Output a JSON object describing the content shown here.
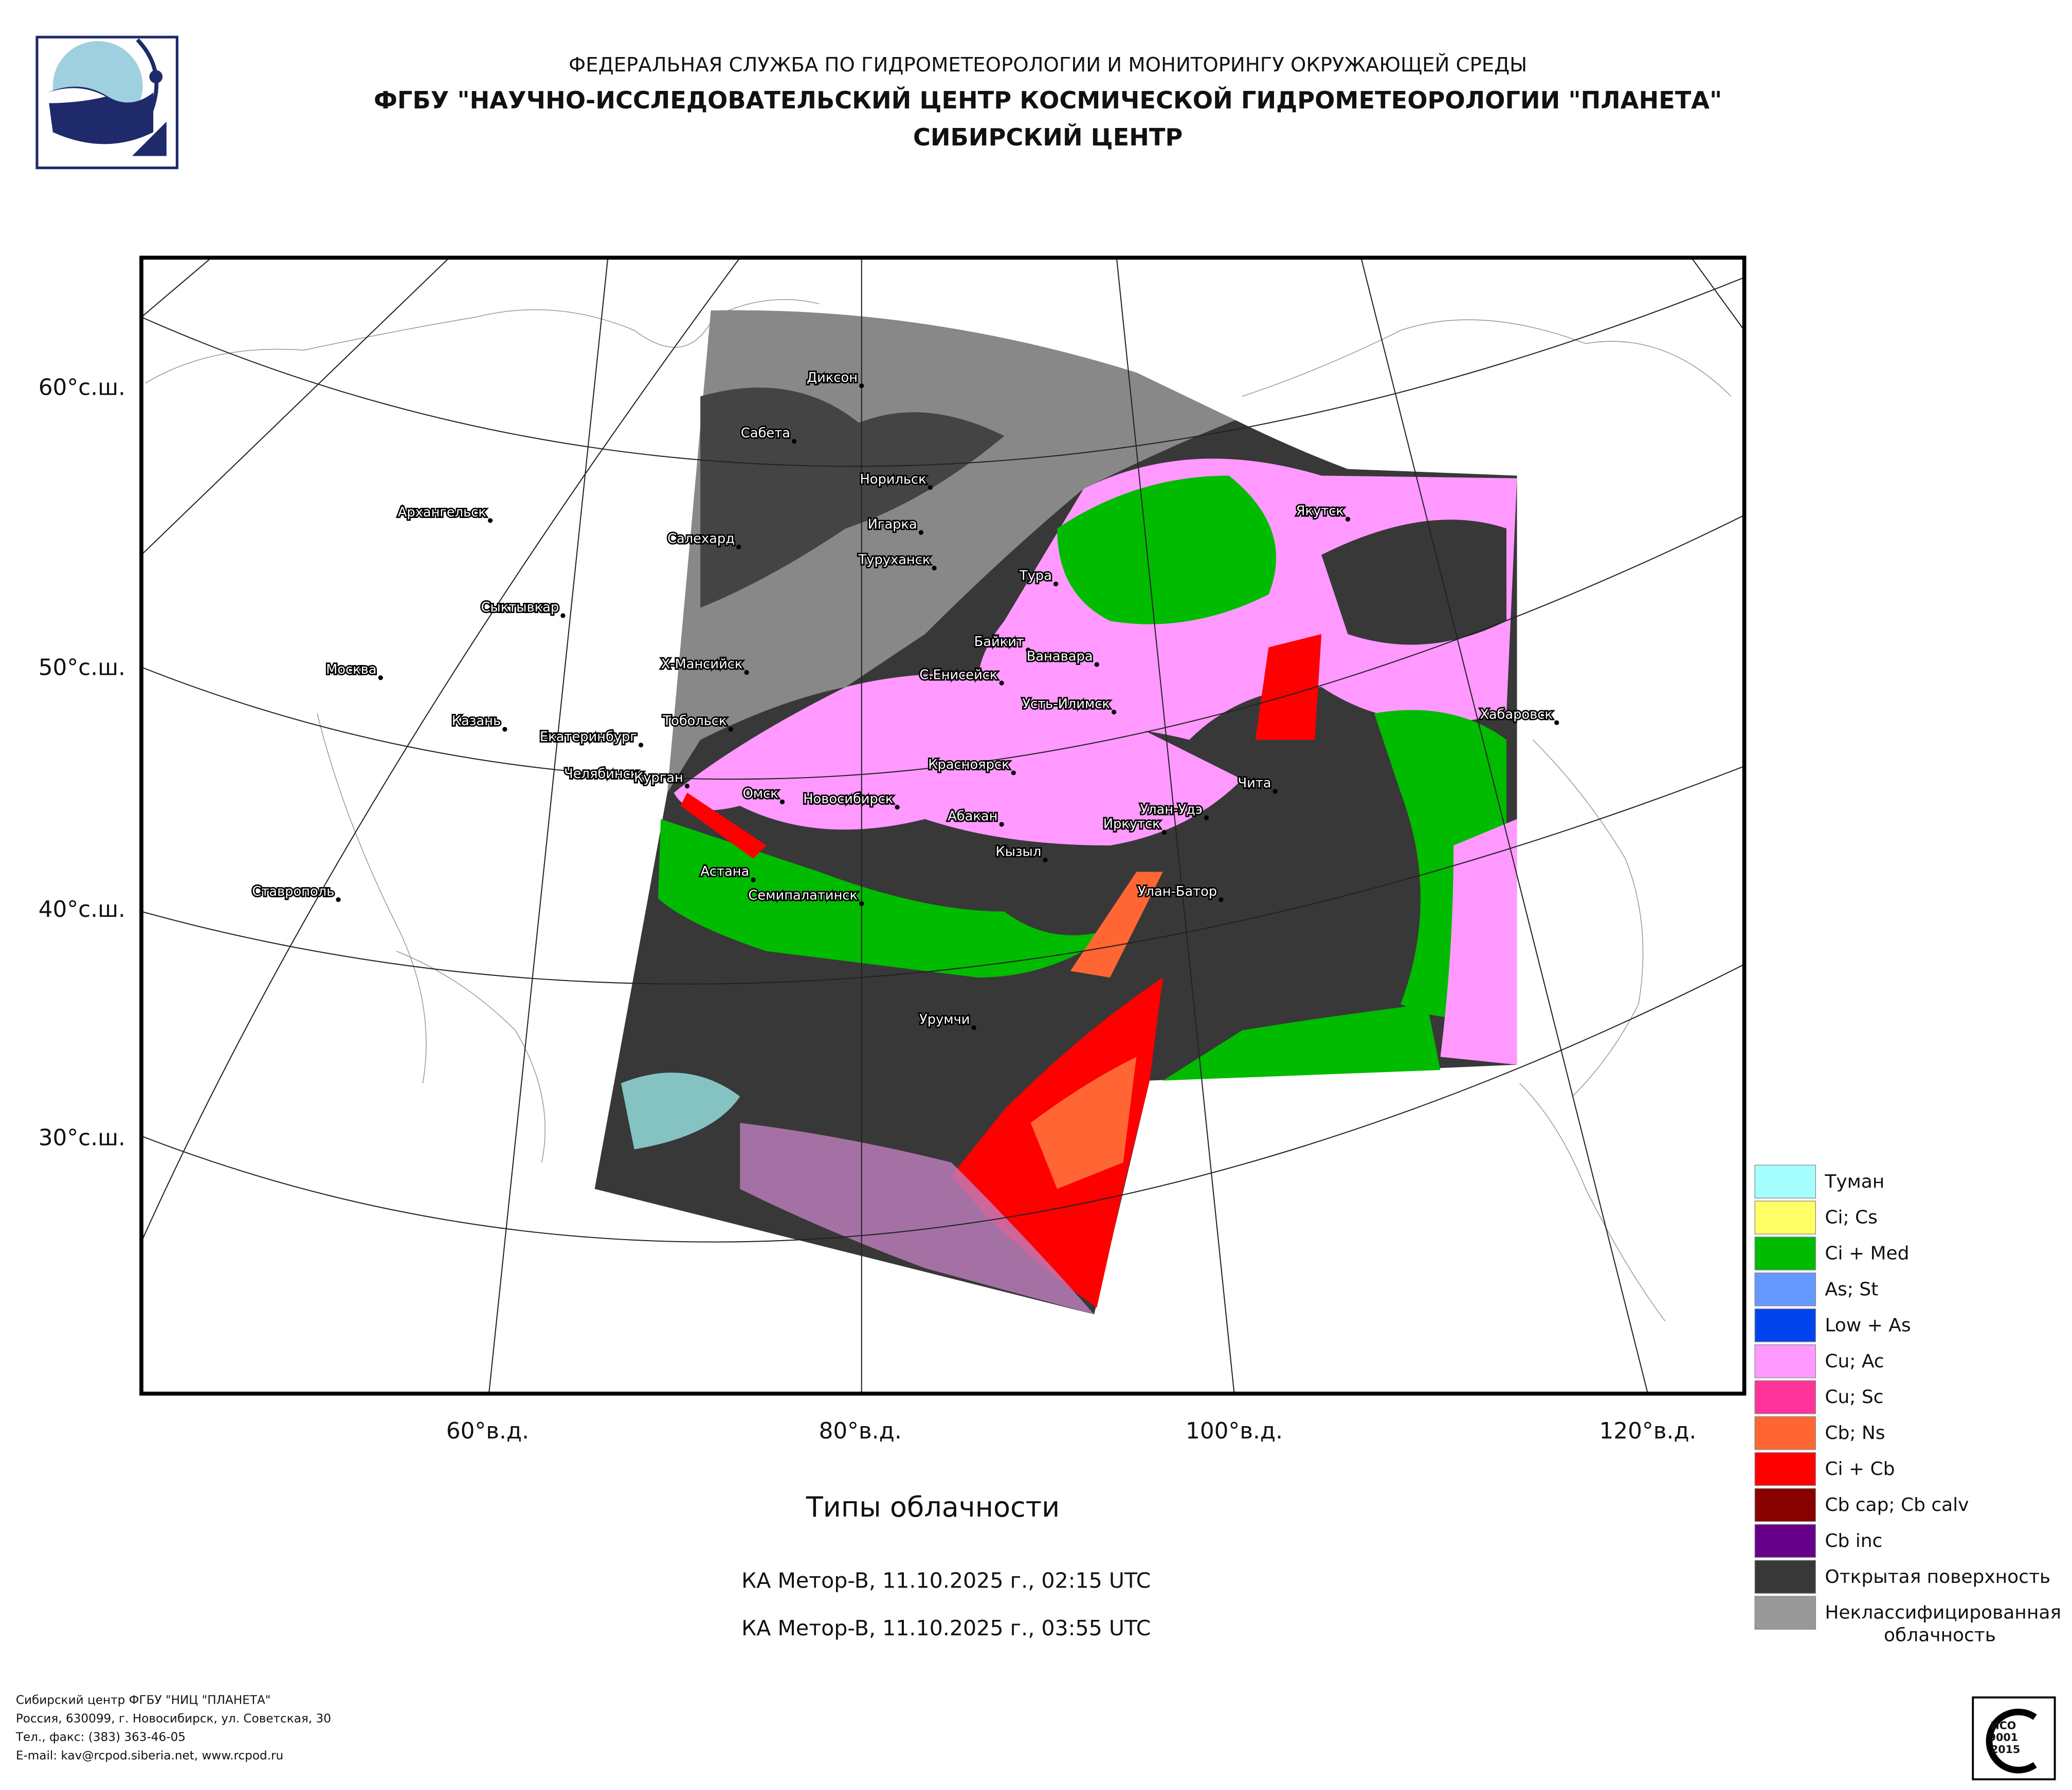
{
  "header": {
    "line1": "ФЕДЕРАЛЬНАЯ СЛУЖБА ПО ГИДРОМЕТЕОРОЛОГИИ И МОНИТОРИНГУ ОКРУЖАЮЩЕЙ СРЕДЫ",
    "line2": "ФГБУ \"НАУЧНО-ИССЛЕДОВАТЕЛЬСКИЙ ЦЕНТР КОСМИЧЕСКОЙ ГИДРОМЕТЕОРОЛОГИИ \"ПЛАНЕТА\"",
    "line3": "СИБИРСКИЙ ЦЕНТР"
  },
  "map": {
    "lat_labels": [
      "60°с.ш.",
      "50°с.ш.",
      "40°с.ш.",
      "30°с.ш."
    ],
    "lon_labels": [
      "60°в.д.",
      "80°в.д.",
      "100°в.д.",
      "120°в.д."
    ],
    "cities": [
      "Диксон",
      "Сабета",
      "Норильск",
      "Игарка",
      "Салехард",
      "Туруханск",
      "Архангельск",
      "Тура",
      "Якутск",
      "Сыктывкар",
      "Байкит",
      "Ванавара",
      "Х-Мансийск",
      "С.Енисейск",
      "Москва",
      "Усть-Илимск",
      "Хабаровск",
      "Казань",
      "Тобольск",
      "Екатеринбург",
      "Челябинск",
      "Курган",
      "Красноярск",
      "Чита",
      "Омск",
      "Новосибирск",
      "Абакан",
      "Улан-Удэ",
      "Иркутск",
      "Кызыл",
      "Астана",
      "Ставрополь",
      "Семипалатинск",
      "Улан-Батор",
      "Урумчи"
    ]
  },
  "legend": [
    {
      "label": "Туман",
      "color": "#a6ffff"
    },
    {
      "label": "Ci; Cs",
      "color": "#ffff66"
    },
    {
      "label": "Ci + Med",
      "color": "#00bb00"
    },
    {
      "label": "As; St",
      "color": "#6699ff"
    },
    {
      "label": "Low + As",
      "color": "#0044ee"
    },
    {
      "label": "Cu; Ac",
      "color": "#ff99ff"
    },
    {
      "label": "Cu; Sc",
      "color": "#ff3399"
    },
    {
      "label": "Cb; Ns",
      "color": "#ff6633"
    },
    {
      "label": "Ci + Cb",
      "color": "#ff0000"
    },
    {
      "label": "Cb cap; Cb calv",
      "color": "#880000"
    },
    {
      "label": "Cb inc",
      "color": "#660088"
    },
    {
      "label": "Открытая поверхность",
      "color": "#383838"
    },
    {
      "label": "Неклассифицированная облачность",
      "color": "#999999"
    }
  ],
  "title": "Типы облачности",
  "passes": [
    "КА Meтop-B, 11.10.2025 г., 02:15 UTC",
    "КА Meтop-B, 11.10.2025 г., 03:55 UTC"
  ],
  "footer": [
    "Сибирский центр ФГБУ \"НИЦ \"ПЛАНЕТА\"",
    "Россия, 630099, г. Новосибирск, ул. Советская, 30",
    "Тел., факс: (383) 363-46-05",
    "E-mail: kav@rcpod.siberia.net, www.rcpod.ru"
  ],
  "badge": [
    "ИСО",
    "9001",
    "-2015"
  ]
}
